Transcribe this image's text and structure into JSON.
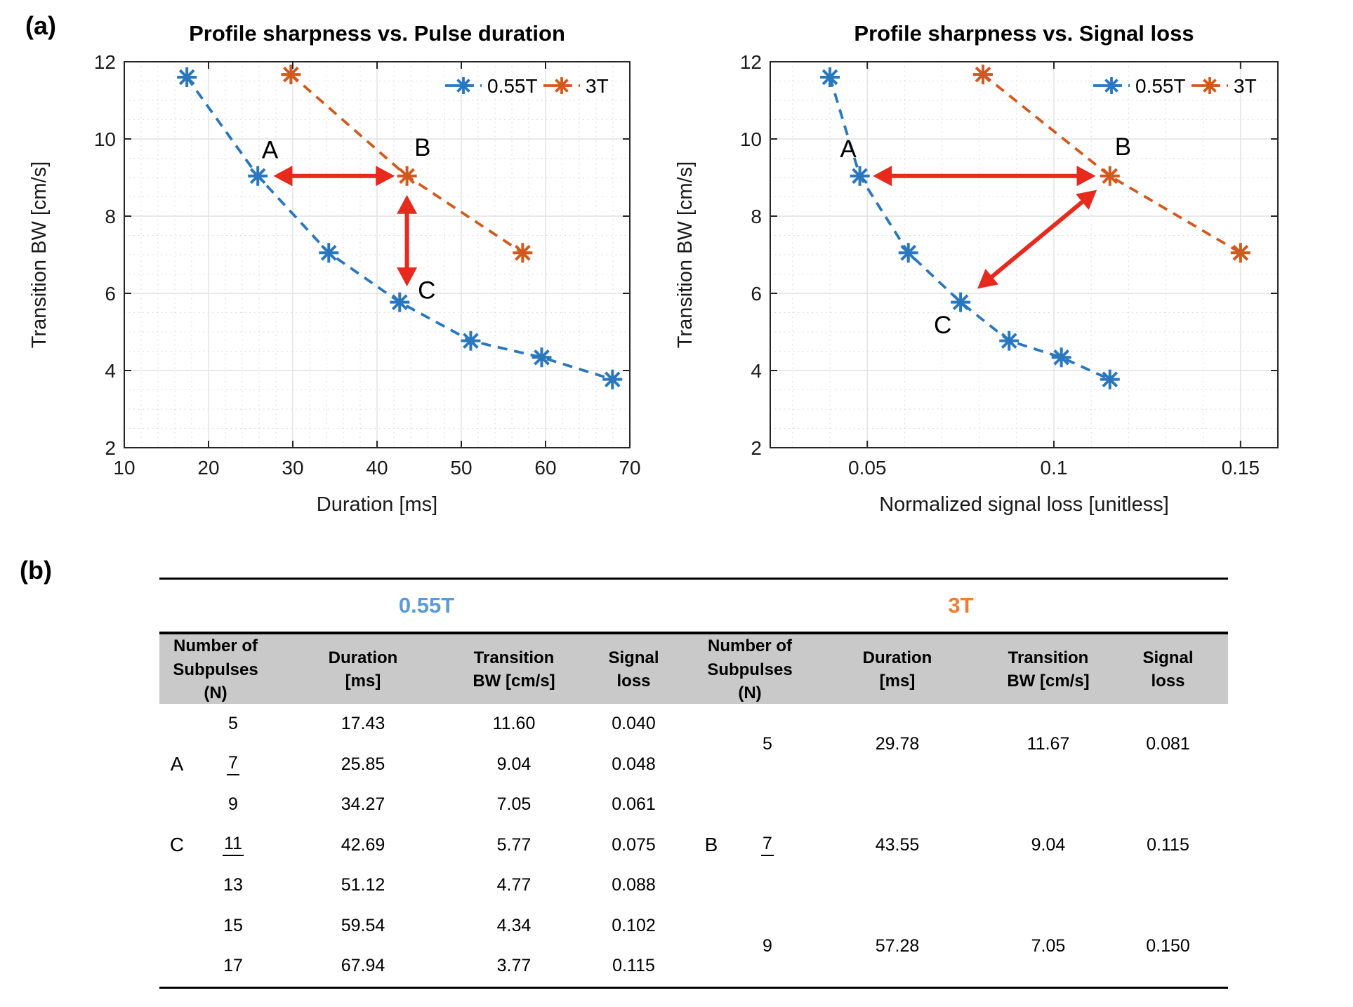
{
  "panel_a_label": "(a)",
  "panel_b_label": "(b)",
  "colors": {
    "blue": "#2a77be",
    "orange": "#d2591e",
    "red": "#e8291d",
    "table_blue": "#5b9bd5",
    "table_orange": "#ed7d31",
    "header_gray": "#c9c9c9",
    "axis": "#262626",
    "grid_major": "#e2e2e2",
    "grid_minor": "#d6d6d6"
  },
  "chart_data": [
    {
      "type": "line",
      "title": "Profile sharpness vs. Pulse duration",
      "xlabel": "Duration [ms]",
      "ylabel": "Transition BW [cm/s]",
      "xlim": [
        10,
        70
      ],
      "ylim": [
        2,
        12
      ],
      "xticks": [
        10,
        20,
        30,
        40,
        50,
        60,
        70
      ],
      "xtick_labels": [
        "10",
        "20",
        "30",
        "40",
        "50",
        "60",
        "70"
      ],
      "yticks": [
        2,
        4,
        6,
        8,
        10,
        12
      ],
      "ytick_labels": [
        "2",
        "4",
        "6",
        "8",
        "10",
        "12"
      ],
      "x_minor_step": 2,
      "y_minor_step": 0.5,
      "grid": true,
      "legend": {
        "position": "top-right",
        "entries": [
          {
            "label": "0.55T",
            "color": "blue"
          },
          {
            "label": "3T",
            "color": "orange"
          }
        ]
      },
      "series": [
        {
          "name": "0.55T",
          "color": "blue",
          "style": "dashed",
          "marker": "asterisk",
          "points": [
            [
              17.43,
              11.6
            ],
            [
              25.85,
              9.04
            ],
            [
              34.27,
              7.05
            ],
            [
              42.69,
              5.77
            ],
            [
              51.12,
              4.77
            ],
            [
              59.54,
              4.34
            ],
            [
              67.94,
              3.77
            ]
          ]
        },
        {
          "name": "3T",
          "color": "orange",
          "style": "dashed",
          "marker": "asterisk",
          "points": [
            [
              29.78,
              11.67
            ],
            [
              43.55,
              9.04
            ],
            [
              57.28,
              7.05
            ]
          ]
        }
      ],
      "annotations": [
        {
          "text": "A",
          "x": 27.3,
          "y": 9.72
        },
        {
          "text": "B",
          "x": 45.4,
          "y": 9.78
        },
        {
          "text": "C",
          "x": 45.9,
          "y": 6.08
        }
      ],
      "arrows": [
        {
          "x1": 27.7,
          "y1": 9.04,
          "x2": 42.1,
          "y2": 9.04,
          "double": true
        },
        {
          "x1": 43.55,
          "y1": 8.55,
          "x2": 43.55,
          "y2": 6.18,
          "double": true
        }
      ]
    },
    {
      "type": "line",
      "title": "Profile sharpness vs. Signal loss",
      "xlabel": "Normalized signal loss [unitless]",
      "ylabel": "Transition BW [cm/s]",
      "xlim": [
        0.024,
        0.16
      ],
      "ylim": [
        2,
        12
      ],
      "xticks": [
        0.05,
        0.1,
        0.15
      ],
      "xtick_labels": [
        "0.05",
        "0.1",
        "0.15"
      ],
      "yticks": [
        2,
        4,
        6,
        8,
        10,
        12
      ],
      "ytick_labels": [
        "2",
        "4",
        "6",
        "8",
        "10",
        "12"
      ],
      "x_minor_step": 0.01,
      "y_minor_step": 0.5,
      "grid": true,
      "legend": {
        "position": "top-right",
        "entries": [
          {
            "label": "0.55T",
            "color": "blue"
          },
          {
            "label": "3T",
            "color": "orange"
          }
        ]
      },
      "series": [
        {
          "name": "0.55T",
          "color": "blue",
          "style": "dashed",
          "marker": "asterisk",
          "points": [
            [
              0.04,
              11.6
            ],
            [
              0.048,
              9.04
            ],
            [
              0.061,
              7.05
            ],
            [
              0.075,
              5.77
            ],
            [
              0.088,
              4.77
            ],
            [
              0.102,
              4.34
            ],
            [
              0.115,
              3.77
            ]
          ]
        },
        {
          "name": "3T",
          "color": "orange",
          "style": "dashed",
          "marker": "asterisk",
          "points": [
            [
              0.081,
              11.67
            ],
            [
              0.115,
              9.04
            ],
            [
              0.15,
              7.05
            ]
          ]
        }
      ],
      "annotations": [
        {
          "text": "A",
          "x": 0.0449,
          "y": 9.75
        },
        {
          "text": "B",
          "x": 0.1185,
          "y": 9.8
        },
        {
          "text": "C",
          "x": 0.0702,
          "y": 5.18
        }
      ],
      "arrows": [
        {
          "x1": 0.0515,
          "y1": 9.04,
          "x2": 0.1112,
          "y2": 9.04,
          "double": true
        },
        {
          "x1": 0.1115,
          "y1": 8.68,
          "x2": 0.0795,
          "y2": 6.12,
          "double": true
        }
      ]
    }
  ],
  "table": {
    "band_left": "0.55T",
    "band_right": "3T",
    "columns": [
      {
        "lines": [
          "Number of",
          "Subpulses (N)"
        ],
        "span": 2
      },
      {
        "lines": [
          "Duration",
          "[ms]"
        ],
        "span": 1
      },
      {
        "lines": [
          "Transition",
          "BW [cm/s]"
        ],
        "span": 1
      },
      {
        "lines": [
          "Signal",
          "loss"
        ],
        "span": 1
      }
    ],
    "left_rows": [
      {
        "marker": "",
        "n": "5",
        "underline": false,
        "duration": "17.43",
        "bw": "11.60",
        "loss": "0.040"
      },
      {
        "marker": "A",
        "n": "7",
        "underline": true,
        "duration": "25.85",
        "bw": "9.04",
        "loss": "0.048"
      },
      {
        "marker": "",
        "n": "9",
        "underline": false,
        "duration": "34.27",
        "bw": "7.05",
        "loss": "0.061"
      },
      {
        "marker": "C",
        "n": "11",
        "underline": true,
        "duration": "42.69",
        "bw": "5.77",
        "loss": "0.075"
      },
      {
        "marker": "",
        "n": "13",
        "underline": false,
        "duration": "51.12",
        "bw": "4.77",
        "loss": "0.088"
      },
      {
        "marker": "",
        "n": "15",
        "underline": false,
        "duration": "59.54",
        "bw": "4.34",
        "loss": "0.102"
      },
      {
        "marker": "",
        "n": "17",
        "underline": false,
        "duration": "67.94",
        "bw": "3.77",
        "loss": "0.115"
      }
    ],
    "right_groups": [
      {
        "rows": [
          1,
          2
        ],
        "marker": "",
        "n": "5",
        "underline": false,
        "duration": "29.78",
        "bw": "11.67",
        "loss": "0.081"
      },
      {
        "rows": [
          3,
          5
        ],
        "marker": "B",
        "n": "7",
        "underline": true,
        "duration": "43.55",
        "bw": "9.04",
        "loss": "0.115"
      },
      {
        "rows": [
          6,
          7
        ],
        "marker": "",
        "n": "9",
        "underline": false,
        "duration": "57.28",
        "bw": "7.05",
        "loss": "0.150"
      }
    ]
  }
}
